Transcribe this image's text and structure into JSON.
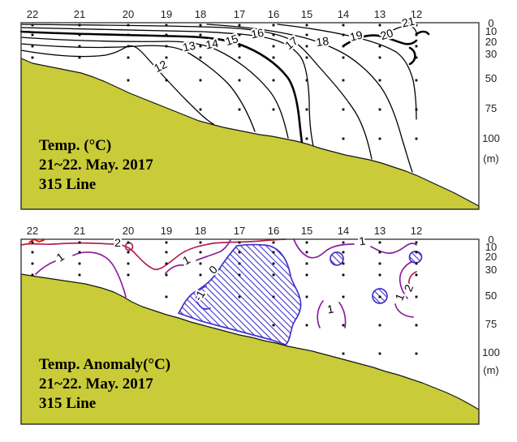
{
  "palette": {
    "background": "#ffffff",
    "seafloor_fill": "#c9cb38",
    "temperature_contour": "#000000",
    "anomaly_plus1": "#8a1f9e",
    "anomaly_plus2": "#b52250",
    "anomaly_plus3": "#ee1100",
    "anomaly_zero_negative": "#4433cc",
    "axis_text": "#222222"
  },
  "chart_data": [
    {
      "type": "heatmap",
      "subtype": "oceanographic-contour-section",
      "title": "Temp. (°C)",
      "date_label": "21~22. May. 2017",
      "line_label": "315 Line",
      "x_axis": {
        "name": "station",
        "position": "top",
        "ticks": [
          "22",
          "21",
          "20",
          "19",
          "18",
          "17",
          "16",
          "15",
          "14",
          "13",
          "12"
        ]
      },
      "y_axis": {
        "name": "depth",
        "position": "right",
        "unit_label": "(m)",
        "ticks": [
          "0",
          "10",
          "20",
          "30",
          "50",
          "75",
          "100"
        ]
      },
      "contour_unit": "°C",
      "contour_levels": [
        12,
        13,
        14,
        15,
        16,
        17,
        18,
        19,
        20,
        21
      ],
      "bold_index_levels": [
        15,
        20
      ],
      "contour_label_texts": [
        "12",
        "13",
        "14",
        "15",
        "16",
        "17",
        "18",
        "19",
        "20",
        "21"
      ],
      "sample_depths_m": [
        0,
        10,
        20,
        30,
        50,
        75,
        100
      ],
      "station_max_sample_index": [
        3,
        3,
        4,
        4,
        5,
        5,
        5,
        6,
        6,
        6,
        6
      ],
      "grid": false,
      "legend": false
    },
    {
      "type": "heatmap",
      "subtype": "oceanographic-contour-section",
      "title": "Temp. Anomaly(°C)",
      "date_label": "21~22. May. 2017",
      "line_label": "315 Line",
      "x_axis": {
        "name": "station",
        "position": "top",
        "ticks": [
          "22",
          "21",
          "20",
          "19",
          "18",
          "17",
          "16",
          "15",
          "14",
          "13",
          "12"
        ]
      },
      "y_axis": {
        "name": "depth",
        "position": "right",
        "unit_label": "(m)",
        "ticks": [
          "0",
          "10",
          "20",
          "30",
          "50",
          "75",
          "100"
        ]
      },
      "contour_unit": "°C",
      "contour_levels": [
        -1,
        0,
        1,
        2,
        3
      ],
      "level_colors": {
        "negative_and_zero": "#4433cc",
        "plus1": "#8a1f9e",
        "plus2": "#b52250",
        "plus3": "#ee1100"
      },
      "negative_region_style": "blue-diagonal-hatch",
      "contour_label_texts": [
        "2",
        "1",
        "1",
        "0",
        "-1",
        "1",
        "2",
        "1",
        "1"
      ],
      "sample_depths_m": [
        0,
        10,
        20,
        30,
        50,
        75,
        100
      ],
      "station_max_sample_index": [
        3,
        3,
        3,
        4,
        4,
        4,
        5,
        5,
        6,
        6,
        6
      ],
      "grid": false,
      "legend": false
    }
  ]
}
